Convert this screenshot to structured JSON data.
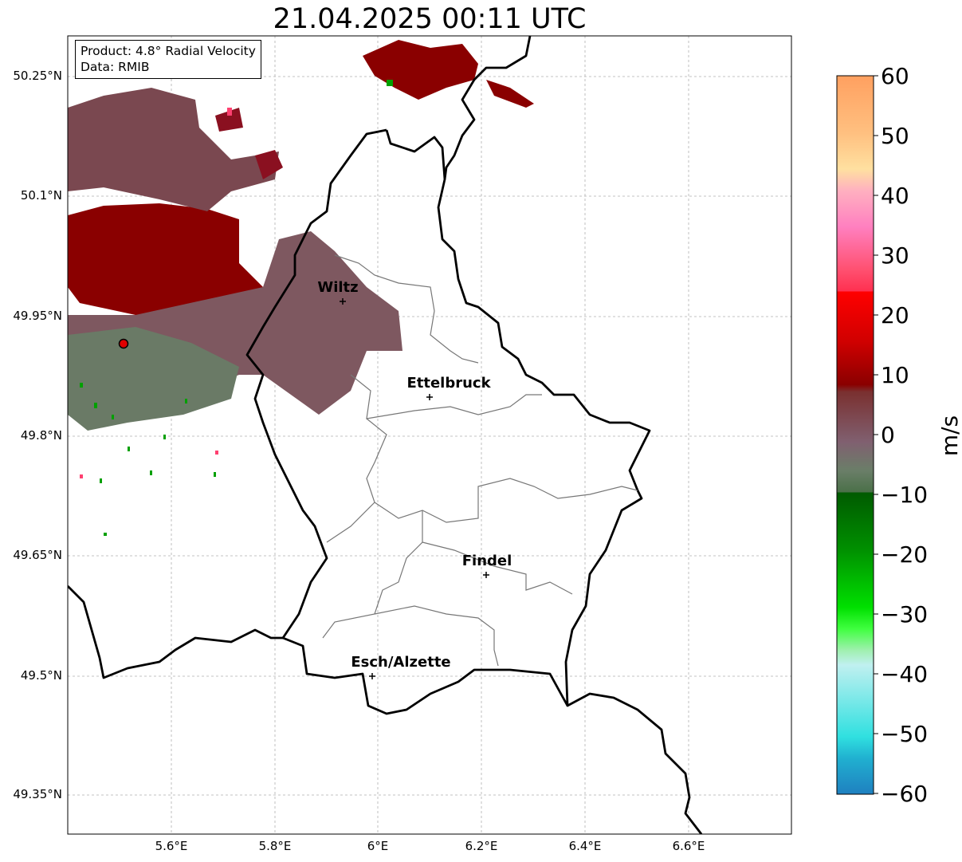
{
  "title": "21.04.2025 00:11 UTC",
  "info": {
    "product": "Product: 4.8° Radial Velocity",
    "data_source": "Data: RMIB"
  },
  "axes": {
    "y_ticks": [
      "50.25°N",
      "50.1°N",
      "49.95°N",
      "49.8°N",
      "49.65°N",
      "49.5°N",
      "49.35°N"
    ],
    "x_ticks": [
      "5.6°E",
      "5.8°E",
      "6°E",
      "6.2°E",
      "6.4°E",
      "6.6°E"
    ],
    "gridlines": true
  },
  "cities": {
    "wiltz": "Wiltz",
    "ettelbruck": "Ettelbruck",
    "findel": "Findel",
    "esch": "Esch/Alzette"
  },
  "radar_site_color": "#e00000",
  "colorbar": {
    "label": "m/s",
    "ticks": [
      "60",
      "50",
      "40",
      "30",
      "20",
      "10",
      "0",
      "−10",
      "−20",
      "−30",
      "−40",
      "−50",
      "−60"
    ],
    "range": [
      -60,
      60
    ]
  }
}
